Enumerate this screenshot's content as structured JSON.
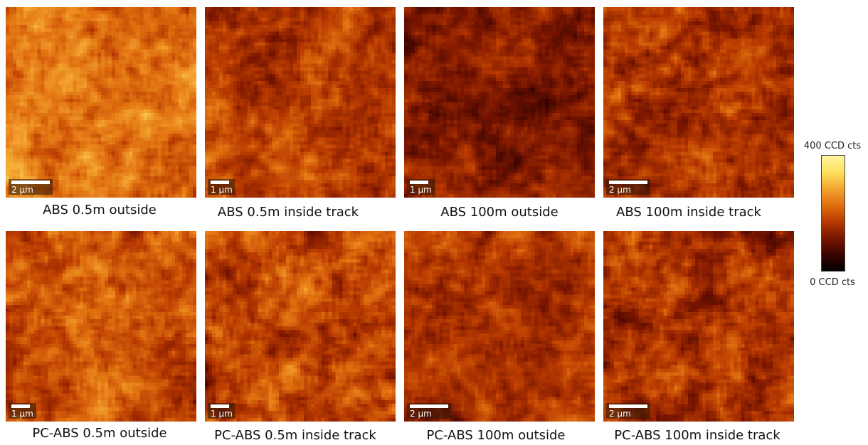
{
  "colormap": [
    "#000000",
    "#3a0400",
    "#7a1600",
    "#b83a00",
    "#e07010",
    "#f4a430",
    "#fde060",
    "#fff4a0"
  ],
  "colorbar": {
    "max_label": "400 CCD cts",
    "min_label": "0 CCD cts"
  },
  "panels": [
    {
      "caption": "ABS 0.5m outside",
      "scale_label": "2 μm",
      "mean": 0.58,
      "contrast": 0.3
    },
    {
      "caption": "ABS 0.5m inside track",
      "scale_label": "1 μm",
      "mean": 0.42,
      "contrast": 0.28
    },
    {
      "caption": "ABS 100m outside",
      "scale_label": "1 μm",
      "mean": 0.3,
      "contrast": 0.26
    },
    {
      "caption": "ABS 100m inside track",
      "scale_label": "2 μm",
      "mean": 0.4,
      "contrast": 0.3
    },
    {
      "caption": "PC-ABS 0.5m outside",
      "scale_label": "1 μm",
      "mean": 0.48,
      "contrast": 0.3
    },
    {
      "caption": "PC-ABS 0.5m inside track",
      "scale_label": "1 μm",
      "mean": 0.45,
      "contrast": 0.32
    },
    {
      "caption": "PC-ABS 100m outside",
      "scale_label": "2 μm",
      "mean": 0.38,
      "contrast": 0.26
    },
    {
      "caption": "PC-ABS 100m inside track",
      "scale_label": "2 μm",
      "mean": 0.4,
      "contrast": 0.32
    }
  ]
}
